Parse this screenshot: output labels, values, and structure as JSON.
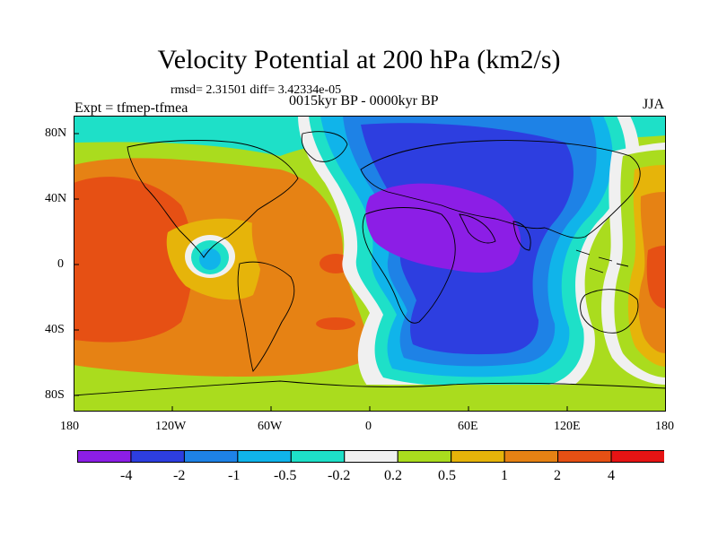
{
  "figure": {
    "title": "Velocity Potential at 200 hPa (km2/s)",
    "stats": "rmsd= 2.31501 diff= 3.42334e-05",
    "experiment": "Expt = tfmep-tfmea",
    "period": "0015kyr BP - 0000kyr BP",
    "season": "JJA"
  },
  "axes": {
    "lon_ticks": [
      "180",
      "120W",
      "60W",
      "0",
      "60E",
      "120E",
      "180"
    ],
    "lat_ticks": [
      "80N",
      "40N",
      "0",
      "40S",
      "80S"
    ]
  },
  "colorbar": {
    "labels": [
      "-4",
      "-2",
      "-1",
      "-0.5",
      "-0.2",
      "0.2",
      "0.5",
      "1",
      "2",
      "4"
    ],
    "colors": [
      "#8c1ee6",
      "#2d3ee0",
      "#1e82e6",
      "#10b4ea",
      "#1ee0c8",
      "#f0f0f0",
      "#aadc1e",
      "#e6b40a",
      "#e68214",
      "#e65014",
      "#e61414"
    ]
  },
  "colors": {
    "land_outline": "#000000",
    "frame": "#000000"
  }
}
